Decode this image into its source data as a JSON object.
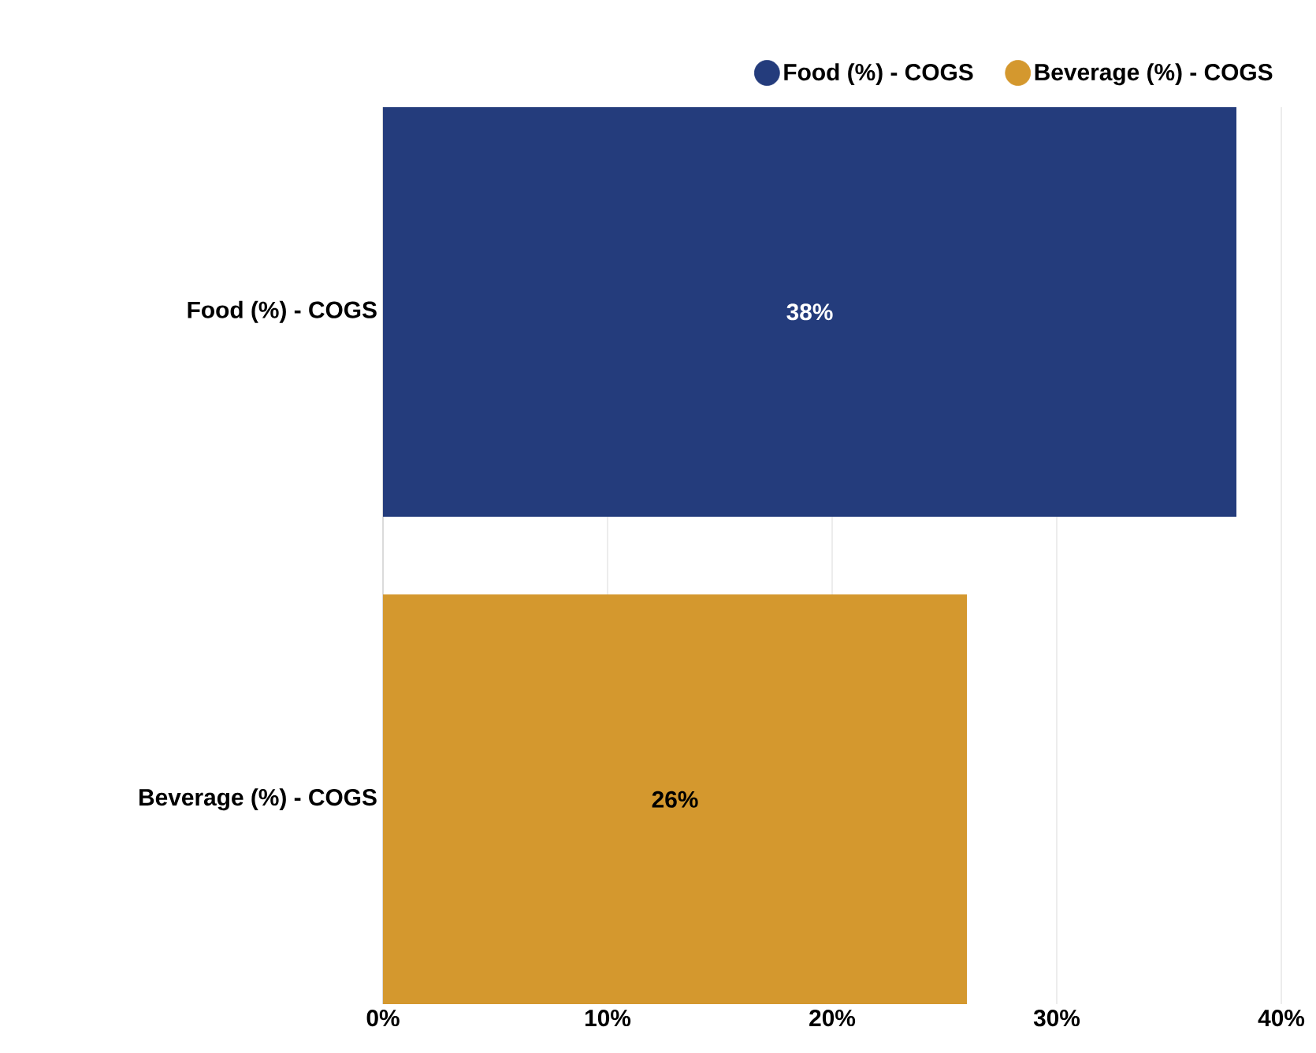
{
  "chart_data": {
    "type": "bar",
    "orientation": "horizontal",
    "categories": [
      "Food (%) - COGS",
      "Beverage (%) - COGS"
    ],
    "series": [
      {
        "name": "Food (%) - COGS",
        "color": "#243c7c",
        "values": [
          38,
          null
        ],
        "value_labels": [
          "38%",
          null
        ]
      },
      {
        "name": "Beverage (%) - COGS",
        "color": "#d4982e",
        "values": [
          null,
          26
        ],
        "value_labels": [
          null,
          "26%"
        ]
      }
    ],
    "xlim": [
      0,
      40
    ],
    "xticks": [
      {
        "value": 0,
        "label": "0%"
      },
      {
        "value": 10,
        "label": "10%"
      },
      {
        "value": 20,
        "label": "20%"
      },
      {
        "value": 30,
        "label": "30%"
      },
      {
        "value": 40,
        "label": "40%"
      }
    ],
    "grid": "x",
    "legend": "top right"
  }
}
